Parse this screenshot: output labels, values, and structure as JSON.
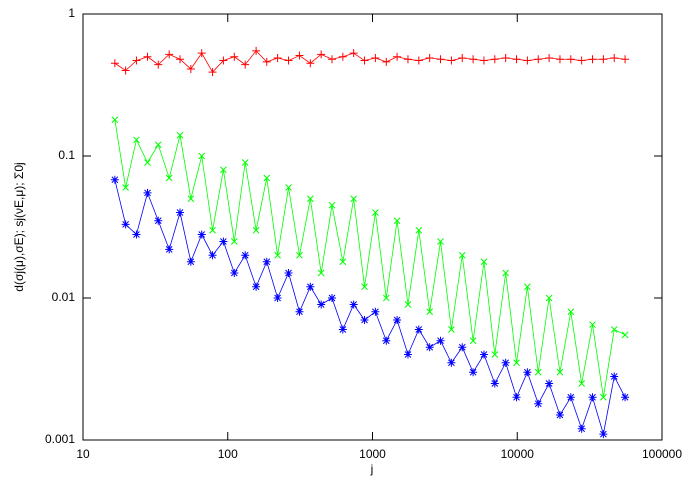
{
  "chart_data": {
    "type": "line",
    "xlabel": "j",
    "ylabel": "d(σj(μ),σE);   sj(νE,μ);   Σ0j",
    "xscale": "log",
    "yscale": "log",
    "xlim": [
      10,
      100000
    ],
    "xticks": [
      10,
      100,
      1000,
      10000,
      100000
    ],
    "ylim": [
      0.001,
      1
    ],
    "yticks": [
      0.001,
      0.01,
      0.1,
      1
    ],
    "x": [
      16.6,
      19.7,
      23.4,
      27.9,
      33.1,
      39.4,
      46.8,
      55.6,
      66.1,
      78.5,
      93.3,
      111,
      132,
      157,
      186,
      221,
      263,
      313,
      372,
      442,
      525,
      624,
      741,
      881,
      1047,
      1245,
      1479,
      1758,
      2089,
      2483,
      2951,
      3508,
      4169,
      4955,
      5888,
      6998,
      8318,
      9886,
      11749,
      13964,
      16596,
      19724,
      23442,
      27861,
      33113,
      39355,
      46774,
      55590
    ],
    "series": [
      {
        "color": "#ff0000",
        "marker": "+",
        "values": [
          0.45,
          0.4,
          0.47,
          0.5,
          0.44,
          0.52,
          0.48,
          0.41,
          0.53,
          0.39,
          0.47,
          0.5,
          0.44,
          0.55,
          0.46,
          0.49,
          0.47,
          0.51,
          0.45,
          0.52,
          0.48,
          0.5,
          0.53,
          0.47,
          0.49,
          0.46,
          0.5,
          0.48,
          0.47,
          0.49,
          0.48,
          0.47,
          0.49,
          0.48,
          0.47,
          0.48,
          0.49,
          0.48,
          0.47,
          0.48,
          0.49,
          0.48,
          0.48,
          0.47,
          0.48,
          0.48,
          0.49,
          0.48
        ]
      },
      {
        "color": "#00ff00",
        "marker": "x",
        "values": [
          0.18,
          0.06,
          0.13,
          0.09,
          0.12,
          0.07,
          0.14,
          0.05,
          0.1,
          0.03,
          0.08,
          0.025,
          0.09,
          0.03,
          0.07,
          0.02,
          0.06,
          0.02,
          0.05,
          0.015,
          0.045,
          0.018,
          0.05,
          0.012,
          0.04,
          0.01,
          0.035,
          0.009,
          0.03,
          0.008,
          0.025,
          0.006,
          0.02,
          0.005,
          0.018,
          0.004,
          0.015,
          0.0035,
          0.012,
          0.003,
          0.01,
          0.003,
          0.008,
          0.0025,
          0.0065,
          0.002,
          0.006,
          0.0055
        ]
      },
      {
        "color": "#0000ff",
        "marker": "*",
        "values": [
          0.068,
          0.033,
          0.028,
          0.055,
          0.035,
          0.022,
          0.04,
          0.018,
          0.028,
          0.02,
          0.025,
          0.015,
          0.02,
          0.012,
          0.018,
          0.01,
          0.015,
          0.008,
          0.012,
          0.009,
          0.01,
          0.006,
          0.009,
          0.007,
          0.008,
          0.005,
          0.007,
          0.004,
          0.006,
          0.0045,
          0.005,
          0.0035,
          0.0045,
          0.003,
          0.004,
          0.0025,
          0.0035,
          0.002,
          0.003,
          0.0018,
          0.0025,
          0.0015,
          0.002,
          0.0012,
          0.002,
          0.0011,
          0.0028,
          0.002
        ]
      }
    ]
  }
}
